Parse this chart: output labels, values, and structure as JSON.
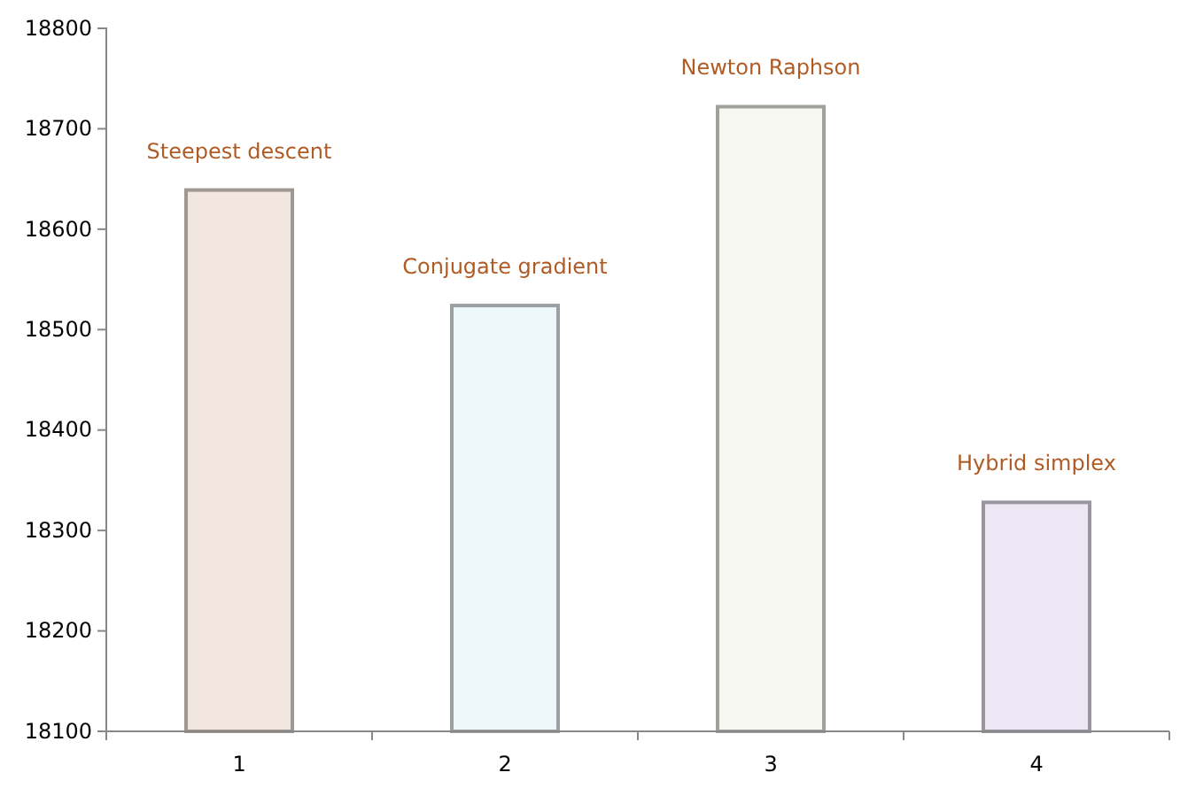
{
  "chart_data": {
    "type": "bar",
    "categories": [
      "1",
      "2",
      "3",
      "4"
    ],
    "values": [
      18639,
      18524,
      18722,
      18328
    ],
    "colors": [
      "#f2e7e0",
      "#eef7fa",
      "#f6f7ee",
      "#ede6f4"
    ],
    "ylim": [
      18100,
      18800
    ],
    "yticks": [
      18100,
      18200,
      18300,
      18400,
      18500,
      18600,
      18700,
      18800
    ],
    "grid": false,
    "annotations": [
      {
        "text": "Steepest descent",
        "x": "1",
        "y": 18639
      },
      {
        "text": "Conjugate gradient",
        "x": "2",
        "y": 18524
      },
      {
        "text": "Newton Raphson",
        "x": "3",
        "y": 18722
      },
      {
        "text": "Hybrid simplex",
        "x": "4",
        "y": 18328
      }
    ]
  }
}
